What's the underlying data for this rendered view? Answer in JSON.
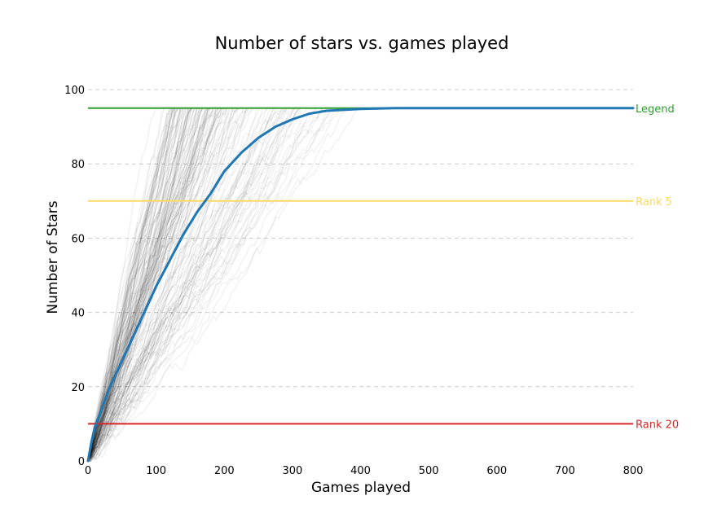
{
  "chart_data": {
    "type": "line",
    "title": "Number of stars vs. games played",
    "xlabel": "Games played",
    "ylabel": "Number of Stars",
    "xlim": [
      0,
      800
    ],
    "ylim": [
      0,
      100
    ],
    "x_ticks": [
      0,
      100,
      200,
      300,
      400,
      500,
      600,
      700,
      800
    ],
    "y_ticks": [
      0,
      20,
      40,
      60,
      80,
      100
    ],
    "grid": "horizontal dashed",
    "background_description": "many faint semi-transparent black simulated trajectories rising from 0 stars toward 95 stars",
    "series": [
      {
        "color": "#1f77b4",
        "x": [
          0,
          5,
          10,
          20,
          30,
          40,
          50,
          60,
          80,
          100,
          120,
          140,
          160,
          180,
          200,
          225,
          250,
          275,
          300,
          325,
          350,
          400,
          450,
          500,
          550,
          600,
          650,
          700,
          800
        ],
        "y": [
          0,
          5,
          9,
          14,
          19,
          23,
          27,
          31,
          39,
          47,
          54,
          61,
          67,
          72,
          78,
          83,
          87,
          90,
          92,
          93.5,
          94.3,
          94.8,
          95,
          95,
          95,
          95,
          95,
          95,
          95
        ]
      }
    ],
    "reference_lines": [
      {
        "label": "Legend",
        "y": 95,
        "color": "#2ca02c"
      },
      {
        "label": "Rank 5",
        "y": 70,
        "color": "#ffd966"
      },
      {
        "label": "Rank 20",
        "y": 10,
        "color": "#d62728"
      }
    ]
  }
}
